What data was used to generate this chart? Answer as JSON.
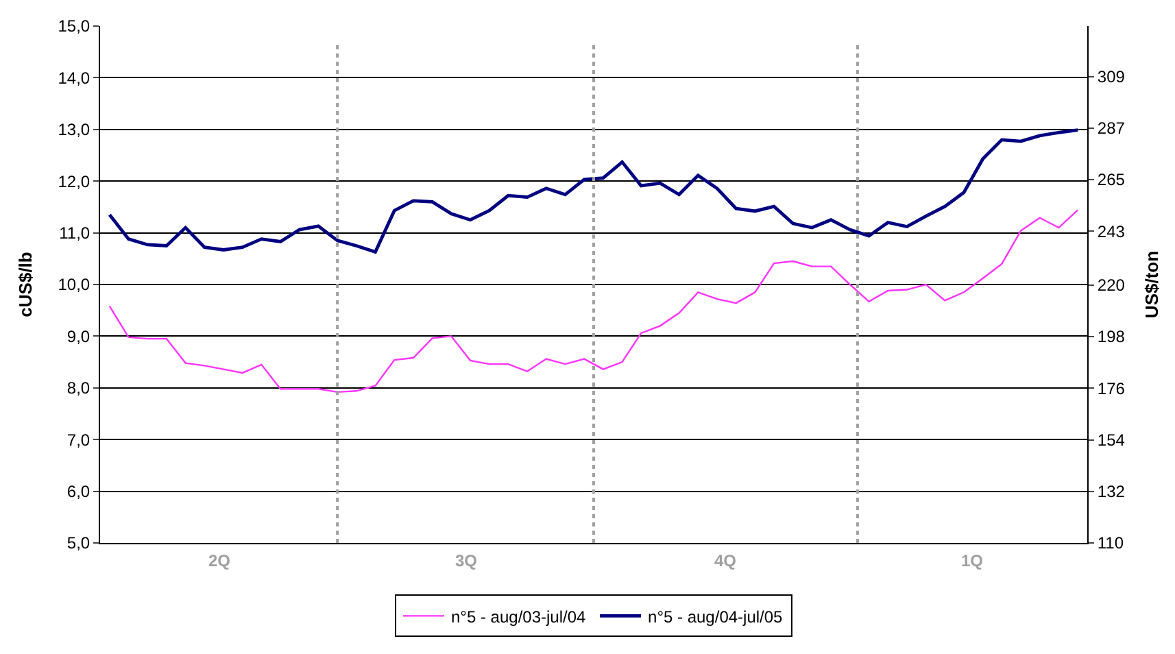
{
  "chart_data": {
    "type": "line",
    "ylabel": "cUS$/lb",
    "y2label": "US$/ton",
    "categories": [
      null,
      null,
      null,
      null,
      null,
      null,
      null,
      null,
      null,
      null,
      null,
      null,
      null,
      null,
      null,
      null,
      null,
      null,
      null,
      null,
      null,
      null,
      null,
      null,
      null,
      null,
      null,
      null,
      null,
      null,
      null,
      null,
      null,
      null,
      null,
      null,
      null,
      null,
      null,
      null,
      null,
      null,
      null,
      null,
      null,
      null,
      null,
      null,
      null,
      null,
      null,
      null
    ],
    "annotations": [
      "2Q",
      "3Q",
      "4Q",
      "1Q"
    ],
    "ylim": [
      5,
      15
    ],
    "yticks": [
      {
        "value": 5,
        "label": "5,0"
      },
      {
        "value": 6,
        "label": "6,0"
      },
      {
        "value": 7,
        "label": "7,0"
      },
      {
        "value": 8,
        "label": "8,0"
      },
      {
        "value": 9,
        "label": "9,0"
      },
      {
        "value": 10,
        "label": "10,0"
      },
      {
        "value": 11,
        "label": "11,0"
      },
      {
        "value": 12,
        "label": "12,0"
      },
      {
        "value": 13,
        "label": "13,0"
      },
      {
        "value": 14,
        "label": "14,0"
      },
      {
        "value": 15,
        "label": "15,0"
      }
    ],
    "y2lim": [
      110,
      330.5
    ],
    "y2ticks": [
      110,
      132,
      154,
      176,
      198,
      220,
      243,
      265,
      287,
      309
    ],
    "series": [
      {
        "name": "n°5 - aug/03-jul/04",
        "color": "#ff33ff",
        "values": [
          9.58,
          8.98,
          8.95,
          8.95,
          8.48,
          8.43,
          8.36,
          8.29,
          8.45,
          7.98,
          7.98,
          7.98,
          7.92,
          7.94,
          8.04,
          8.54,
          8.58,
          8.96,
          9.0,
          8.53,
          8.46,
          8.46,
          8.32,
          8.56,
          8.46,
          8.56,
          8.36,
          8.5,
          9.06,
          9.2,
          9.45,
          9.85,
          9.72,
          9.64,
          9.85,
          10.41,
          10.45,
          10.35,
          10.35,
          10.0,
          9.67,
          9.88,
          9.9,
          10.0,
          9.69,
          9.85,
          10.12,
          10.4,
          11.04,
          11.29,
          11.1,
          11.44
        ]
      },
      {
        "name": "n°5 - aug/04-jul/05",
        "color": "#000080",
        "values": [
          11.35,
          10.88,
          10.77,
          10.75,
          11.1,
          10.72,
          10.67,
          10.72,
          10.88,
          10.83,
          11.06,
          11.13,
          10.85,
          10.75,
          10.63,
          11.43,
          11.62,
          11.6,
          11.37,
          11.25,
          11.43,
          11.72,
          11.69,
          11.86,
          11.74,
          12.03,
          12.06,
          12.37,
          11.91,
          11.96,
          11.74,
          12.11,
          11.86,
          11.47,
          11.42,
          11.51,
          11.18,
          11.1,
          11.25,
          11.06,
          10.94,
          11.2,
          11.12,
          11.32,
          11.51,
          11.78,
          12.43,
          12.8,
          12.77,
          12.88,
          12.94,
          12.99
        ]
      }
    ],
    "grid": "y",
    "legend": "bottom",
    "marker": "none",
    "line_style": "solid"
  }
}
